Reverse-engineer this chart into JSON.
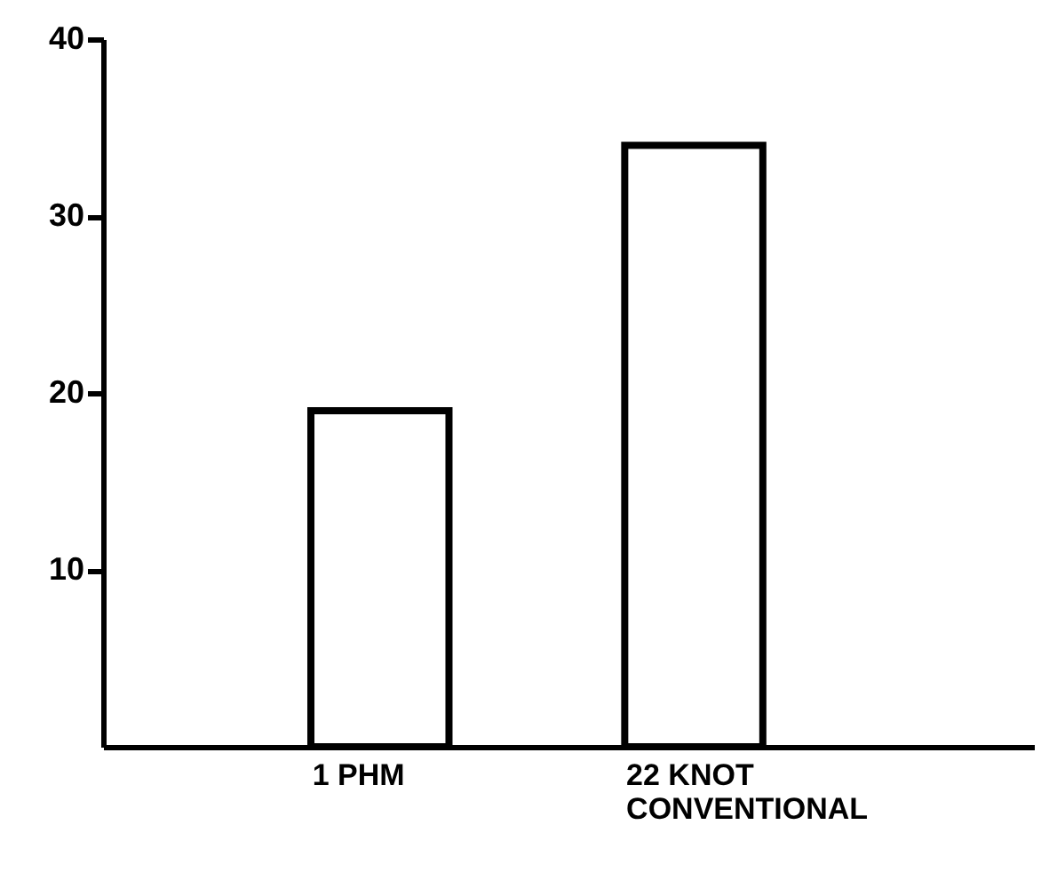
{
  "chart_data": {
    "type": "bar",
    "categories": [
      "1 PHM",
      "22 KNOT\nCONVENTIONAL"
    ],
    "values": [
      19,
      34
    ],
    "color": "#000000",
    "ylim": [
      0,
      40
    ],
    "yticks": [
      10,
      20,
      30,
      40
    ]
  }
}
